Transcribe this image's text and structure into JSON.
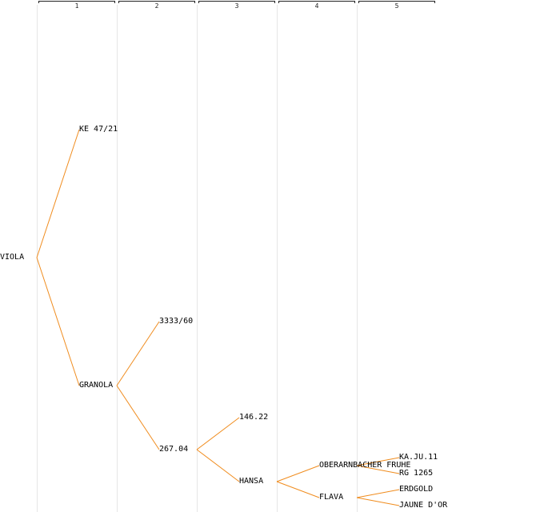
{
  "columns": [
    "1",
    "2",
    "3",
    "4",
    "5"
  ],
  "colors": {
    "edge": "#f08c1e",
    "text": "#000000",
    "grid": "#e6e6e6"
  },
  "tree": {
    "label": "VIOLA",
    "children": [
      {
        "label": "KE 47/21"
      },
      {
        "label": "GRANOLA",
        "children": [
          {
            "label": "3333/60"
          },
          {
            "label": "267.04",
            "children": [
              {
                "label": "146.22"
              },
              {
                "label": "HANSA",
                "children": [
                  {
                    "label": "OBERARNBACHER FRUHE",
                    "children": [
                      {
                        "label": "KA.JU.11"
                      },
                      {
                        "label": "RG 1265"
                      }
                    ]
                  },
                  {
                    "label": "FLAVA",
                    "children": [
                      {
                        "label": "ERDGOLD"
                      },
                      {
                        "label": "JAUNE D'OR"
                      }
                    ]
                  }
                ]
              }
            ]
          }
        ]
      }
    ]
  }
}
